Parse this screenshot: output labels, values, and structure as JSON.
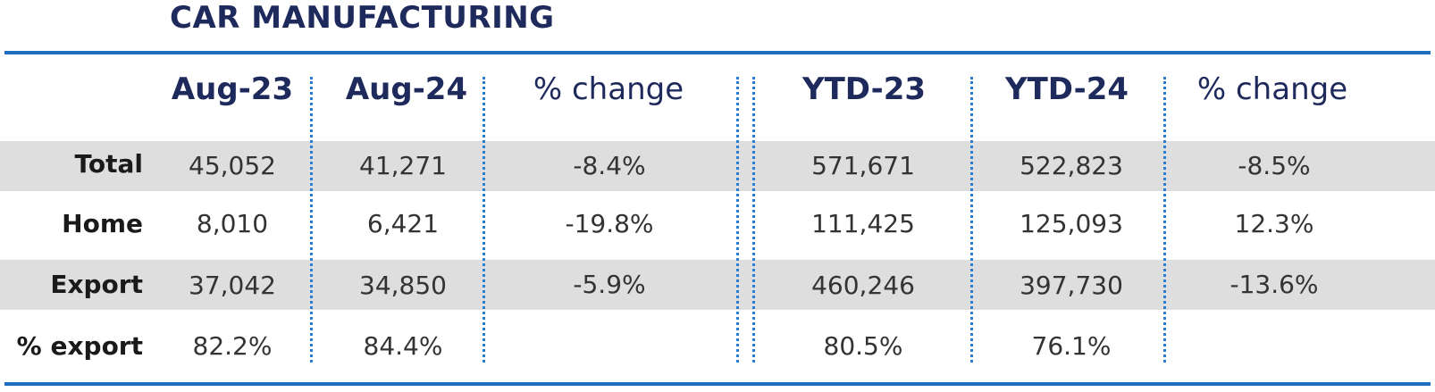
{
  "title": "CAR MANUFACTURING",
  "chart_data": {
    "type": "table",
    "title": "CAR MANUFACTURING",
    "columns": [
      "Aug-23",
      "Aug-24",
      "% change",
      "YTD-23",
      "YTD-24",
      "% change"
    ],
    "rows": [
      {
        "label": "Total",
        "values": [
          "45,052",
          "41,271",
          "-8.4%",
          "571,671",
          "522,823",
          "-8.5%"
        ]
      },
      {
        "label": "Home",
        "values": [
          "8,010",
          "6,421",
          "-19.8%",
          "111,425",
          "125,093",
          "12.3%"
        ]
      },
      {
        "label": "Export",
        "values": [
          "37,042",
          "34,850",
          "-5.9%",
          "460,246",
          "397,730",
          "-13.6%"
        ]
      },
      {
        "label": "% export",
        "values": [
          "82.2%",
          "84.4%",
          "",
          "80.5%",
          "76.1%",
          ""
        ]
      }
    ]
  },
  "colors": {
    "header_text": "#1f2a5c",
    "rule": "#1f6fc0",
    "divider": "#2a7dd4",
    "band": "#dedede"
  }
}
